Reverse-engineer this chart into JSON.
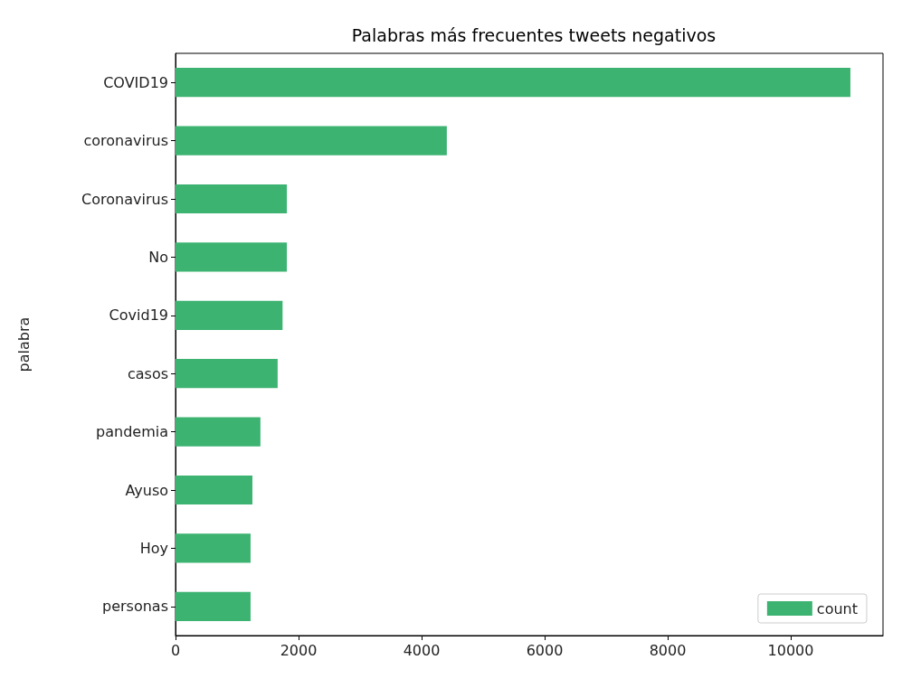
{
  "chart_data": {
    "type": "bar",
    "orientation": "horizontal",
    "title": "Palabras más frecuentes tweets negativos",
    "ylabel": "palabra",
    "categories": [
      "COVID19",
      "coronavirus",
      "Coronavirus",
      "No",
      "Covid19",
      "casos",
      "pandemia",
      "Ayuso",
      "Hoy",
      "personas"
    ],
    "series": [
      {
        "name": "count",
        "color": "#3cb371",
        "values": [
          10970,
          4410,
          1810,
          1810,
          1740,
          1660,
          1380,
          1250,
          1220,
          1220
        ]
      }
    ],
    "xlim": [
      0,
      11500
    ],
    "xticks": [
      0,
      2000,
      4000,
      6000,
      8000,
      10000
    ],
    "grid": false,
    "legend": "bottom right"
  }
}
